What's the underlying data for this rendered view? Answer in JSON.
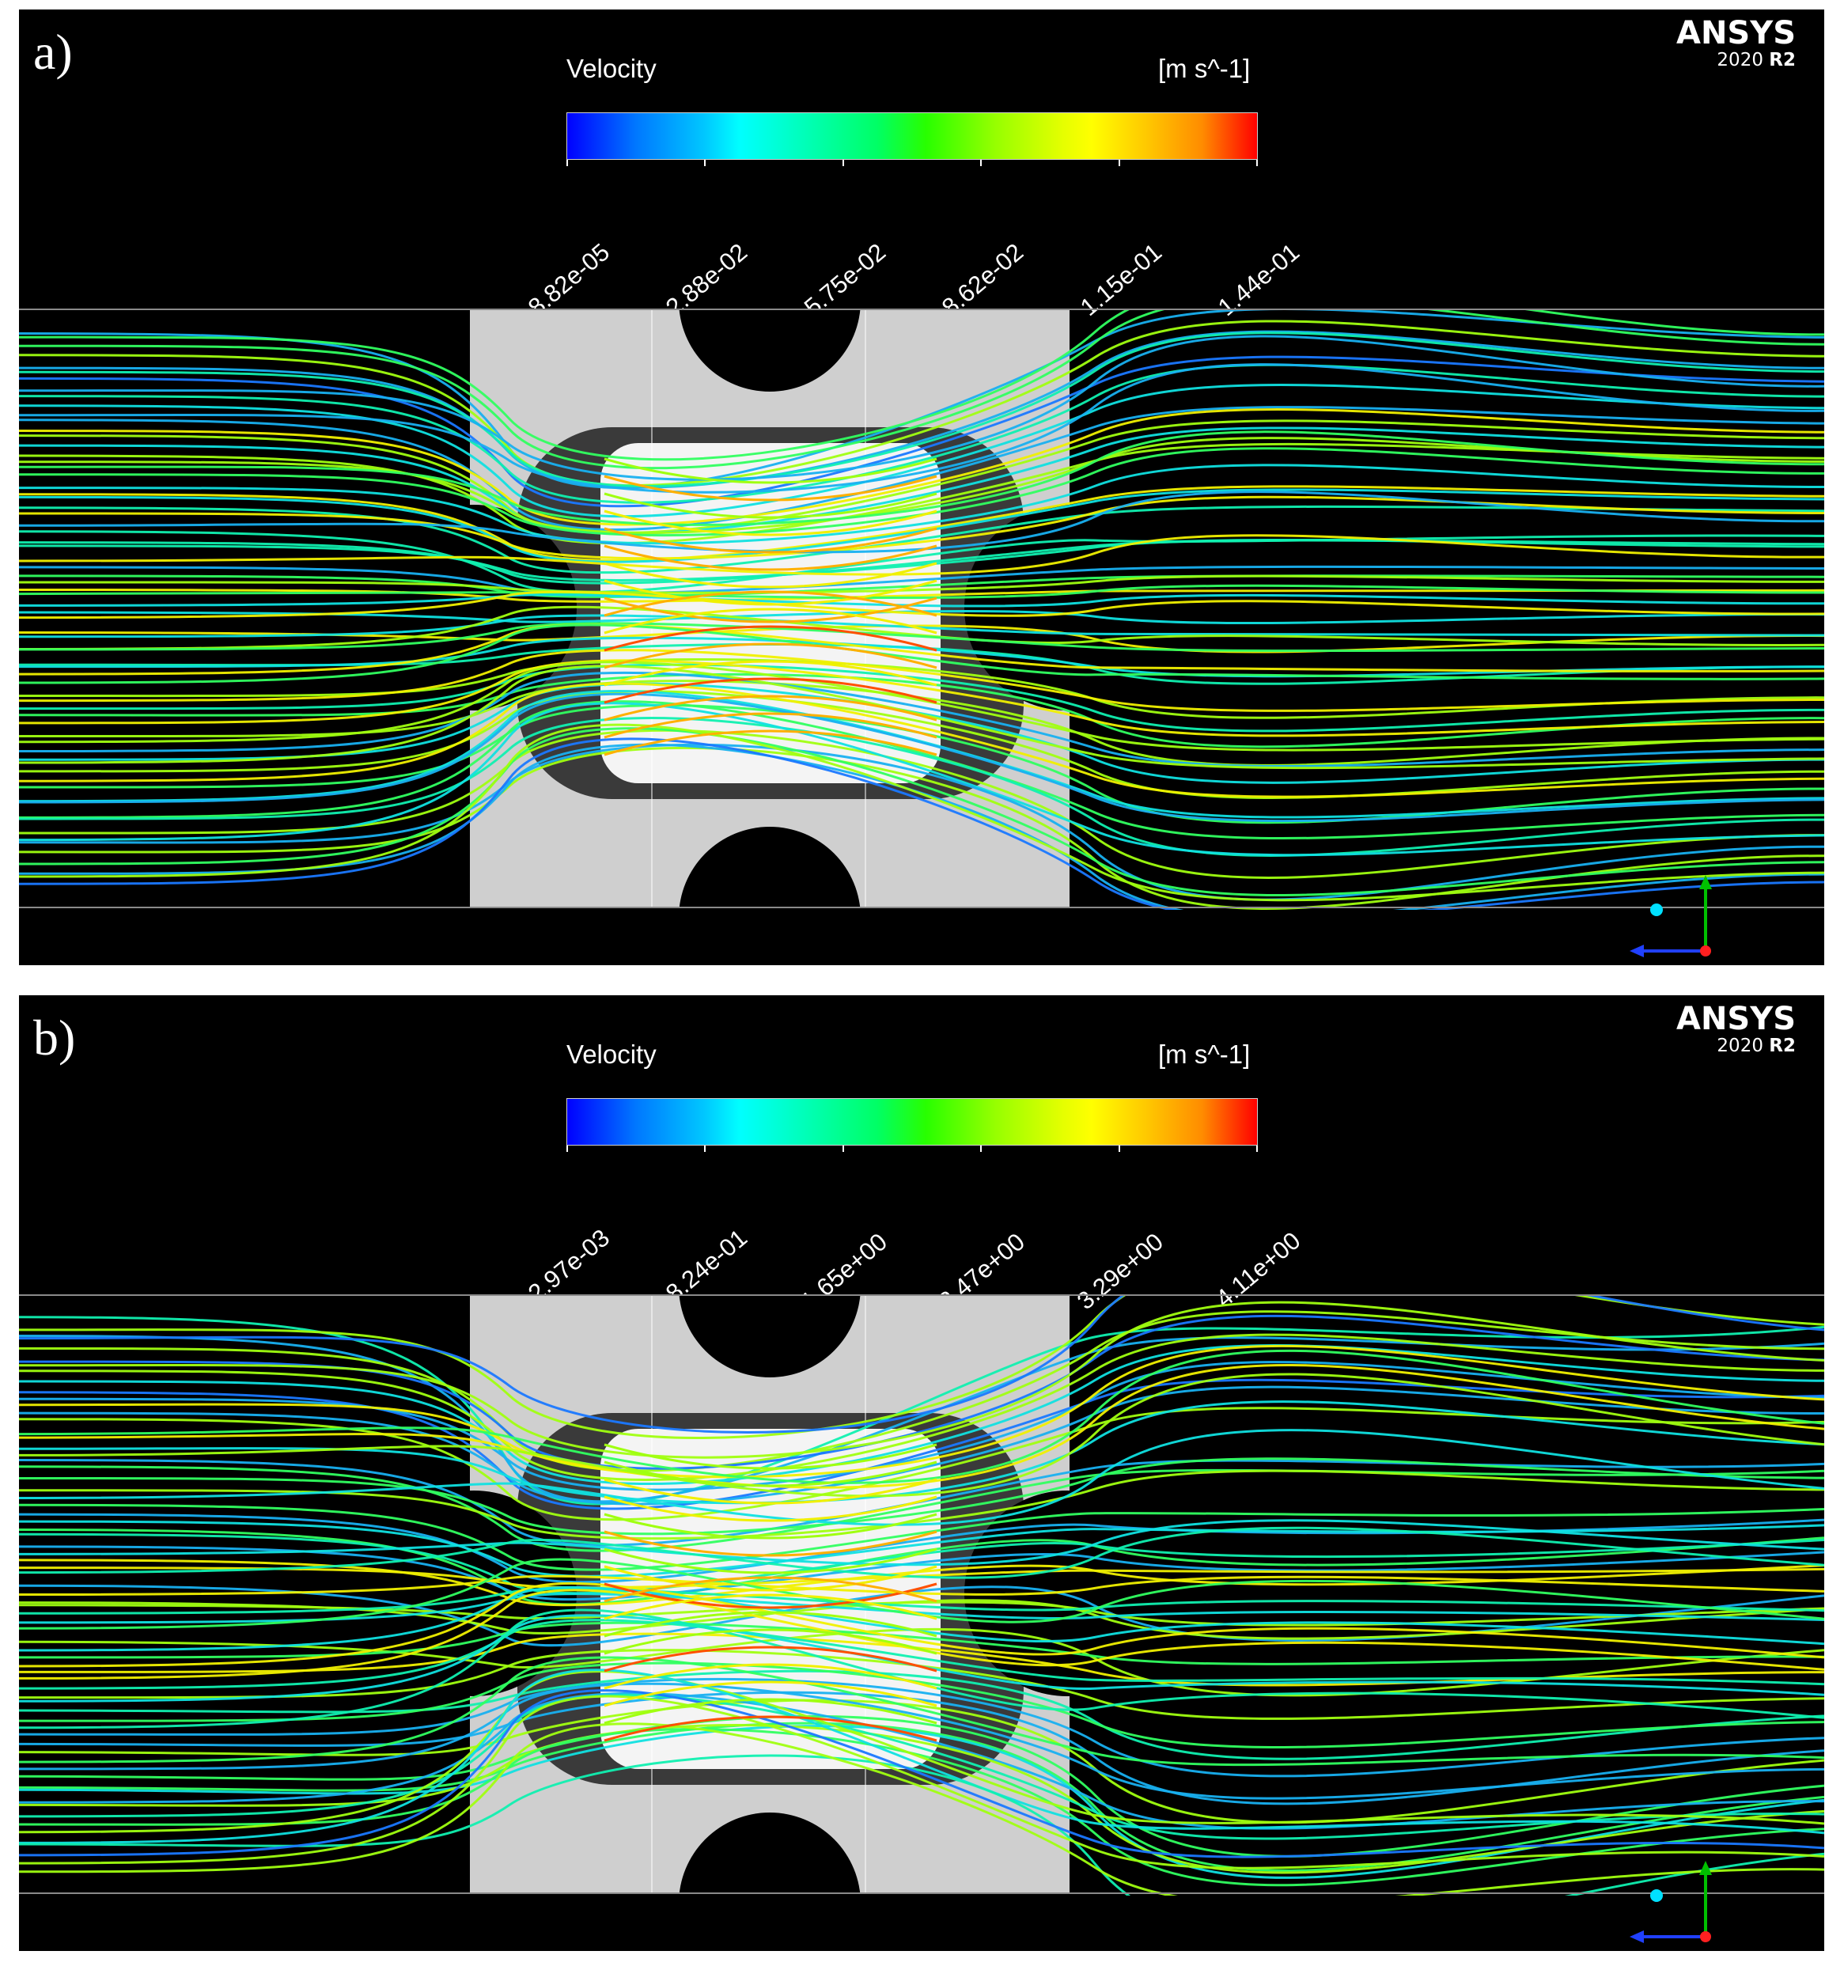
{
  "panels": [
    {
      "id": "a",
      "letter": "a)",
      "legend": {
        "title": "Velocity",
        "units": "[m s^-1]",
        "ticks": [
          "8.82e-05",
          "2.88e-02",
          "5.75e-02",
          "8.62e-02",
          "1.15e-01",
          "1.44e-01"
        ]
      },
      "brand": {
        "name": "ANSYS",
        "version": "2020",
        "release": "R2"
      }
    },
    {
      "id": "b",
      "letter": "b)",
      "legend": {
        "title": "Velocity",
        "units": "[m s^-1]",
        "ticks": [
          "2.97e-03",
          "8.24e-01",
          "1.65e+00",
          "2.47e+00",
          "3.29e+00",
          "4.11e+00"
        ]
      },
      "brand": {
        "name": "ANSYS",
        "version": "2020",
        "release": "R2"
      }
    }
  ],
  "colors": {
    "background": "#000000",
    "geometry": "#d8d8d8",
    "axis_y": "#00c000",
    "axis_z": "#2040ff",
    "axis_x": "#ff2020",
    "axis_ball": "#00e0ff"
  }
}
